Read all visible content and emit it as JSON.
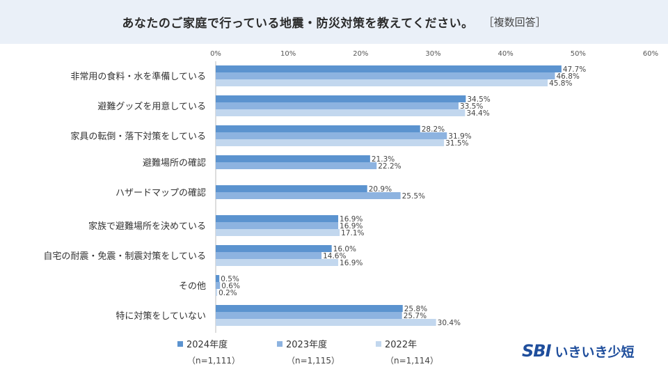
{
  "header": {
    "title": "あなたのご家庭で行っている地震・防災対策を教えてください。",
    "note": "［複数回答］"
  },
  "colors": {
    "header_bg": "#eaf0f8",
    "series_2024": "#5b93cf",
    "series_2023": "#8db3e0",
    "series_2022": "#c2d7ee",
    "brand": "#1f4e9c"
  },
  "logo": {
    "brand": "SBI",
    "name": "いきいき少短"
  },
  "chart_data": {
    "type": "bar",
    "orientation": "horizontal",
    "categories": [
      "非常用の食料・水を準備している",
      "避難グッズを用意している",
      "家具の転倒・落下対策をしている",
      "避難場所の確認",
      "ハザードマップの確認",
      "家族で避難場所を決めている",
      "自宅の耐震・免震・制震対策をしている",
      "その他",
      "特に対策をしていない"
    ],
    "series": [
      {
        "name": "2024年度",
        "n": "（n=1,111）",
        "values": [
          47.7,
          34.5,
          28.2,
          21.3,
          20.9,
          16.9,
          16.0,
          0.5,
          25.8
        ]
      },
      {
        "name": "2023年度",
        "n": "（n=1,115）",
        "values": [
          46.8,
          33.5,
          31.9,
          22.2,
          25.5,
          16.9,
          14.6,
          0.6,
          25.7
        ]
      },
      {
        "name": "2022年",
        "n": "（n=1,114）",
        "values": [
          45.8,
          34.4,
          31.5,
          null,
          null,
          17.1,
          16.9,
          0.2,
          30.4
        ]
      }
    ],
    "xlim": [
      0,
      60
    ],
    "ticks": [
      "0%",
      "10%",
      "20%",
      "30%",
      "40%",
      "50%",
      "60%"
    ],
    "value_suffix": "%",
    "grid": false,
    "legend_position": "bottom"
  }
}
